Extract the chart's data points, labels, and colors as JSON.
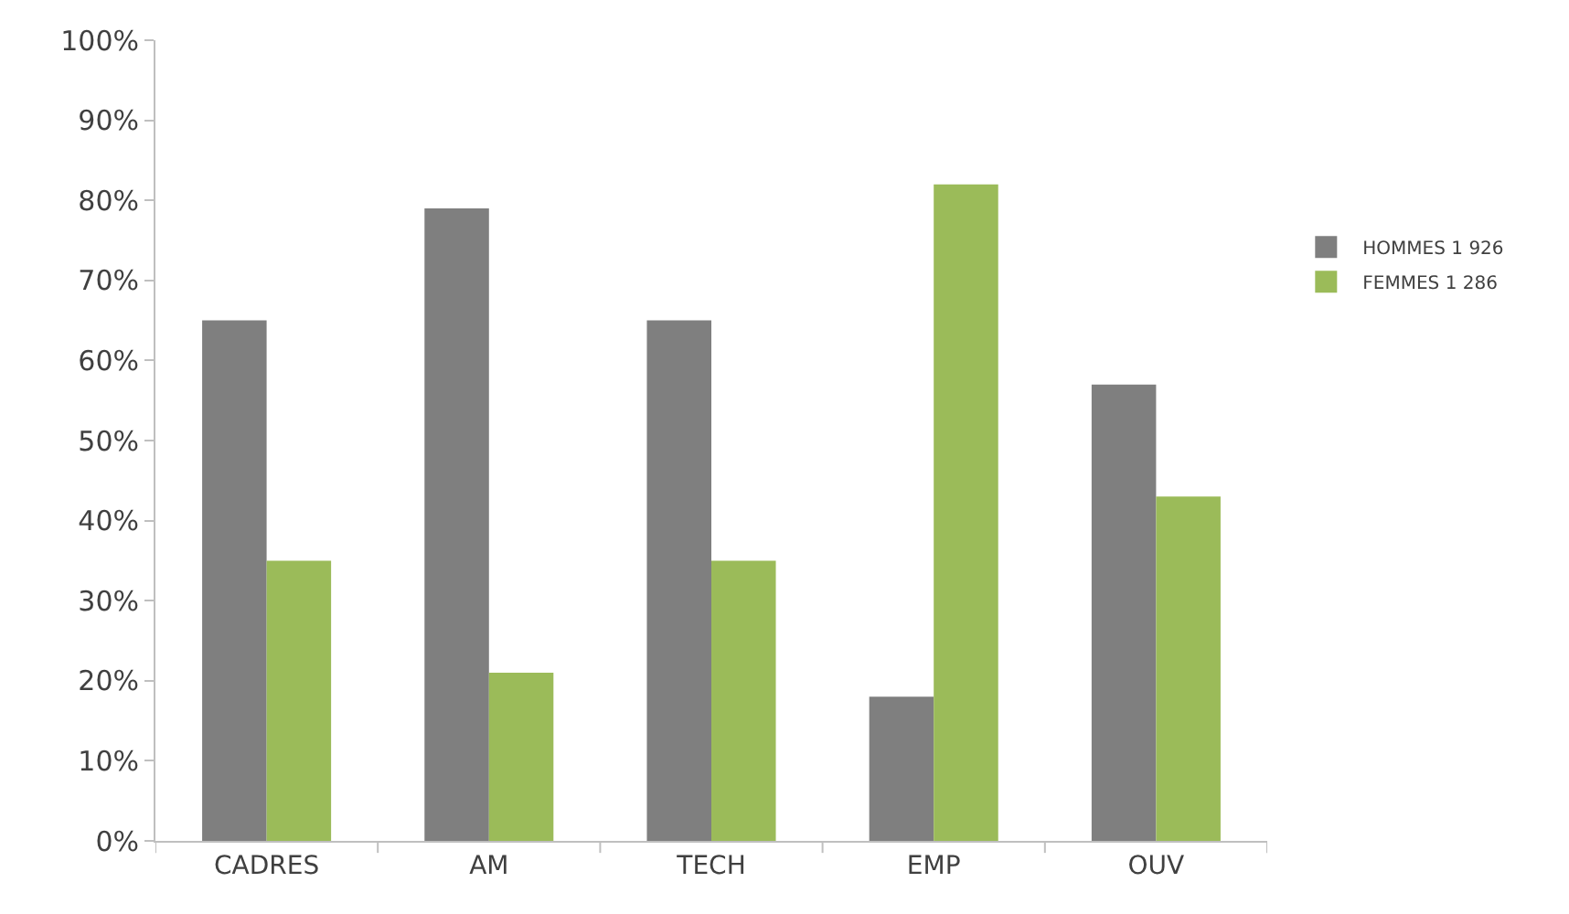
{
  "chart_data": {
    "type": "bar",
    "categories": [
      "CADRES",
      "AM",
      "TECH",
      "EMP",
      "OUV"
    ],
    "series": [
      {
        "name": "HOMMES 1 926",
        "color": "#7f7f7f",
        "values": [
          65,
          79,
          65,
          18,
          57
        ]
      },
      {
        "name": "FEMMES 1 286",
        "color": "#9bbb59",
        "values": [
          35,
          21,
          35,
          82,
          43
        ]
      }
    ],
    "ylim": [
      0,
      100
    ],
    "yticks": [
      {
        "value": 0,
        "label": "0%"
      },
      {
        "value": 10,
        "label": "10%"
      },
      {
        "value": 20,
        "label": "20%"
      },
      {
        "value": 30,
        "label": "30%"
      },
      {
        "value": 40,
        "label": "40%"
      },
      {
        "value": 50,
        "label": "50%"
      },
      {
        "value": 60,
        "label": "60%"
      },
      {
        "value": 70,
        "label": "70%"
      },
      {
        "value": 80,
        "label": "80%"
      },
      {
        "value": 90,
        "label": "90%"
      },
      {
        "value": 100,
        "label": "100%"
      }
    ],
    "legend": "right"
  }
}
